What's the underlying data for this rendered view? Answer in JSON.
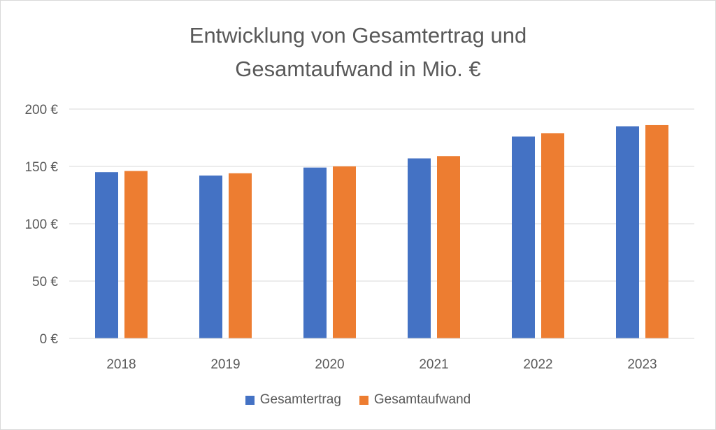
{
  "chart_data": {
    "type": "bar",
    "title_lines": [
      "Entwicklung von Gesamtertrag und",
      "Gesamtaufwand in Mio. €"
    ],
    "categories": [
      "2018",
      "2019",
      "2020",
      "2021",
      "2022",
      "2023"
    ],
    "series": [
      {
        "name": "Gesamtertrag",
        "color": "#4472C4",
        "values": [
          145,
          142,
          149,
          157,
          176,
          185
        ]
      },
      {
        "name": "Gesamtaufwand",
        "color": "#ED7D31",
        "values": [
          146,
          144,
          150,
          159,
          179,
          186
        ]
      }
    ],
    "ylim": [
      0,
      200
    ],
    "yticks": [
      0,
      50,
      100,
      150,
      200
    ],
    "ytick_labels": [
      "0 €",
      "50 €",
      "100 €",
      "150 €",
      "200 €"
    ],
    "grid": true,
    "legend_position": "bottom"
  }
}
